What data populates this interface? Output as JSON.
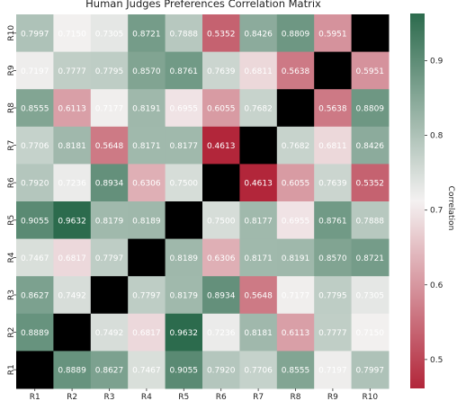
{
  "chart_data": {
    "type": "heatmap",
    "title": "Human Judges Preferences Correlation Matrix",
    "x_labels": [
      "R1",
      "R2",
      "R3",
      "R4",
      "R5",
      "R6",
      "R7",
      "R8",
      "R9",
      "R10"
    ],
    "y_labels": [
      "R10",
      "R9",
      "R8",
      "R7",
      "R6",
      "R5",
      "R4",
      "R3",
      "R2",
      "R1"
    ],
    "values": [
      [
        0.7997,
        0.715,
        0.7305,
        0.8721,
        0.7888,
        0.5352,
        0.8426,
        0.8809,
        0.5951,
        null
      ],
      [
        0.7197,
        0.7777,
        0.7795,
        0.857,
        0.8761,
        0.7639,
        0.6811,
        0.5638,
        null,
        0.5951
      ],
      [
        0.8555,
        0.6113,
        0.7177,
        0.8191,
        0.6955,
        0.6055,
        0.7682,
        null,
        0.5638,
        0.8809
      ],
      [
        0.7706,
        0.8181,
        0.5648,
        0.8171,
        0.8177,
        0.4613,
        null,
        0.7682,
        0.6811,
        0.8426
      ],
      [
        0.792,
        0.7236,
        0.8934,
        0.6306,
        0.75,
        null,
        0.4613,
        0.6055,
        0.7639,
        0.5352
      ],
      [
        0.9055,
        0.9632,
        0.8179,
        0.8189,
        null,
        0.75,
        0.8177,
        0.6955,
        0.8761,
        0.7888
      ],
      [
        0.7467,
        0.6817,
        0.7797,
        null,
        0.8189,
        0.6306,
        0.8171,
        0.8191,
        0.857,
        0.8721
      ],
      [
        0.8627,
        0.7492,
        null,
        0.7797,
        0.8179,
        0.8934,
        0.5648,
        0.7177,
        0.7795,
        0.7305
      ],
      [
        0.8889,
        null,
        0.7492,
        0.6817,
        0.9632,
        0.7236,
        0.8181,
        0.6113,
        0.7777,
        0.715
      ],
      [
        null,
        0.8889,
        0.8627,
        0.7467,
        0.9055,
        0.792,
        0.7706,
        0.8555,
        0.7197,
        0.7997
      ]
    ],
    "colorbar": {
      "label": "Correlation",
      "range": [
        0.4613,
        0.9632
      ],
      "ticks": [
        0.5,
        0.6,
        0.7,
        0.8,
        0.9
      ],
      "tick_labels": [
        "0.5",
        "0.6",
        "0.7",
        "0.8",
        "0.9"
      ],
      "colors": {
        "low": "#b2263a",
        "mid": "#f4f1f1",
        "high": "#2c6b4d"
      }
    },
    "missing_color": "#000000",
    "value_text_color": "#ffffff"
  }
}
